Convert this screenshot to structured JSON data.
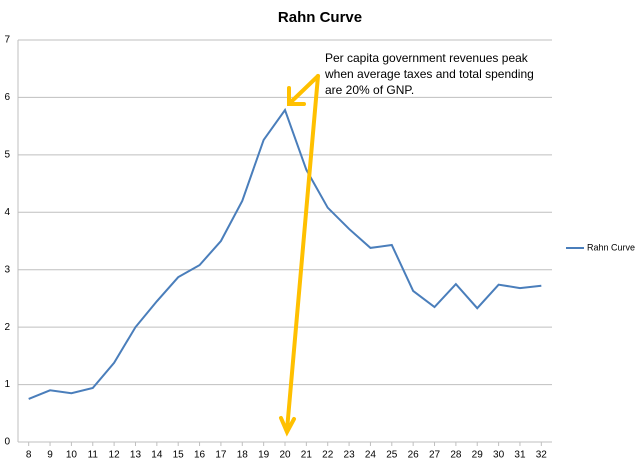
{
  "chart_data": {
    "type": "line",
    "title": "Rahn Curve",
    "x": [
      8,
      9,
      10,
      11,
      12,
      13,
      14,
      15,
      16,
      17,
      18,
      19,
      20,
      21,
      22,
      23,
      24,
      25,
      26,
      27,
      28,
      29,
      30,
      31,
      32
    ],
    "series": [
      {
        "name": "Rahn Curve",
        "color": "#4a7ebb",
        "values": [
          0.75,
          0.9,
          0.85,
          0.94,
          1.38,
          2.0,
          2.45,
          2.87,
          3.08,
          3.5,
          4.2,
          5.26,
          5.78,
          4.74,
          4.08,
          3.71,
          3.38,
          3.43,
          2.63,
          2.35,
          2.75,
          2.33,
          2.74,
          2.68,
          2.72
        ]
      }
    ],
    "xlim": [
      7.5,
      32.5
    ],
    "xticks": [
      8,
      9,
      10,
      11,
      12,
      13,
      14,
      15,
      16,
      17,
      18,
      19,
      20,
      21,
      22,
      23,
      24,
      25,
      26,
      27,
      28,
      29,
      30,
      31,
      32
    ],
    "ylim": [
      0,
      7
    ],
    "yticks": [
      0,
      1,
      2,
      3,
      4,
      5,
      6,
      7
    ],
    "grid": true,
    "legend": "right",
    "annotation": [
      "Per capita government revenues peak",
      "when average taxes and total spending",
      "are 20% of GNP."
    ]
  }
}
